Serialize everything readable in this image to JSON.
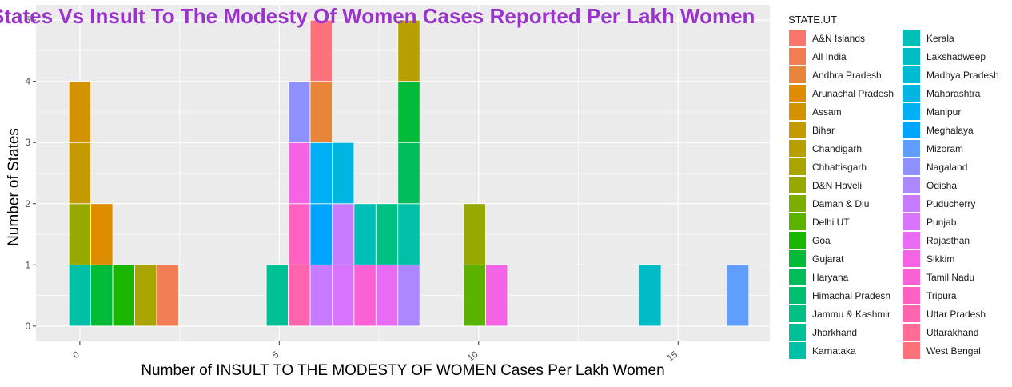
{
  "chart_data": {
    "type": "bar",
    "subtype": "stacked-histogram",
    "title": "States Vs Insult To The Modesty Of Women Cases Reported Per Lakh Women",
    "title_color": "#9a32cd",
    "xlabel": "Number of INSULT TO THE MODESTY OF WOMEN Cases Per Lakh Women",
    "ylabel": "Number of States",
    "xlim": [
      -1.1,
      17.3
    ],
    "ylim": [
      -0.25,
      5.25
    ],
    "x_ticks": [
      0,
      5,
      10,
      15
    ],
    "x_tick_labels": [
      "0",
      "5",
      "10",
      "15"
    ],
    "y_ticks": [
      0,
      1,
      2,
      3,
      4,
      5
    ],
    "y_tick_labels": [
      "0",
      "1",
      "2",
      "3",
      "4",
      "5"
    ],
    "bin_width": 0.55,
    "grid": true,
    "legend": {
      "title": "STATE.UT",
      "placement": "right",
      "columns": 2,
      "entries": [
        {
          "name": "A&N Islands",
          "color": "#F8766D"
        },
        {
          "name": "All India",
          "color": "#F27D52"
        },
        {
          "name": "Andhra Pradesh",
          "color": "#E8853A"
        },
        {
          "name": "Arunachal Pradesh",
          "color": "#DE8C00"
        },
        {
          "name": "Assam",
          "color": "#D39200"
        },
        {
          "name": "Bihar",
          "color": "#C49A00"
        },
        {
          "name": "Chandigarh",
          "color": "#B79F00"
        },
        {
          "name": "Chhattisgarh",
          "color": "#A9A400"
        },
        {
          "name": "D&N Haveli",
          "color": "#97A900"
        },
        {
          "name": "Daman & Diu",
          "color": "#7CAE00"
        },
        {
          "name": "Delhi UT",
          "color": "#5BB300"
        },
        {
          "name": "Goa",
          "color": "#19B700"
        },
        {
          "name": "Gujarat",
          "color": "#00BA38"
        },
        {
          "name": "Haryana",
          "color": "#00BC59"
        },
        {
          "name": "Himachal Pradesh",
          "color": "#00BE70"
        },
        {
          "name": "Jammu & Kashmir",
          "color": "#00C084"
        },
        {
          "name": "Jharkhand",
          "color": "#00C096"
        },
        {
          "name": "Karnataka",
          "color": "#00C0A7"
        },
        {
          "name": "Kerala",
          "color": "#00BFB7"
        },
        {
          "name": "Lakshadweep",
          "color": "#00BDC5"
        },
        {
          "name": "Madhya Pradesh",
          "color": "#00BAD3"
        },
        {
          "name": "Maharashtra",
          "color": "#00B5E0"
        },
        {
          "name": "Manipur",
          "color": "#00B0F6"
        },
        {
          "name": "Meghalaya",
          "color": "#00A5FF"
        },
        {
          "name": "Mizoram",
          "color": "#619CFF"
        },
        {
          "name": "Nagaland",
          "color": "#8F91FF"
        },
        {
          "name": "Odisha",
          "color": "#AC88FF"
        },
        {
          "name": "Puducherry",
          "color": "#C77CFF"
        },
        {
          "name": "Punjab",
          "color": "#D874FD"
        },
        {
          "name": "Rajasthan",
          "color": "#E76BF3"
        },
        {
          "name": "Sikkim",
          "color": "#F464E5"
        },
        {
          "name": "Tamil Nadu",
          "color": "#FA62D4"
        },
        {
          "name": "Tripura",
          "color": "#FF61C3"
        },
        {
          "name": "Uttar Pradesh",
          "color": "#FF65AE"
        },
        {
          "name": "Uttarakhand",
          "color": "#FF6C95"
        },
        {
          "name": "West Bengal",
          "color": "#FD717B"
        }
      ]
    },
    "bars": [
      {
        "x": 0.0,
        "stack": [
          "Karnataka",
          "D&N Haveli",
          "Bihar",
          "Assam"
        ]
      },
      {
        "x": 0.55,
        "stack": [
          "Gujarat",
          "Arunachal Pradesh"
        ]
      },
      {
        "x": 1.1,
        "stack": [
          "Goa"
        ]
      },
      {
        "x": 1.65,
        "stack": [
          "Chhattisgarh"
        ]
      },
      {
        "x": 2.2,
        "stack": [
          "All India"
        ]
      },
      {
        "x": 4.95,
        "stack": [
          "Jharkhand"
        ]
      },
      {
        "x": 5.5,
        "stack": [
          "Uttar Pradesh",
          "Tripura",
          "Sikkim",
          "Nagaland"
        ]
      },
      {
        "x": 6.05,
        "stack": [
          "Puducherry",
          "Meghalaya",
          "Manipur",
          "Andhra Pradesh",
          "West Bengal"
        ]
      },
      {
        "x": 6.6,
        "stack": [
          "Punjab",
          "Puducherry",
          "Maharashtra"
        ]
      },
      {
        "x": 7.15,
        "stack": [
          "Tamil Nadu",
          "Kerala"
        ]
      },
      {
        "x": 7.7,
        "stack": [
          "Rajasthan",
          "Jammu & Kashmir"
        ]
      },
      {
        "x": 8.25,
        "stack": [
          "Odisha",
          "Karnataka",
          "Haryana",
          "Gujarat",
          "Chandigarh"
        ]
      },
      {
        "x": 9.9,
        "stack": [
          "Delhi UT",
          "D&N Haveli"
        ]
      },
      {
        "x": 10.45,
        "stack": [
          "Sikkim"
        ]
      },
      {
        "x": 14.3,
        "stack": [
          "Lakshadweep"
        ]
      },
      {
        "x": 16.5,
        "stack": [
          "Mizoram"
        ]
      }
    ]
  }
}
